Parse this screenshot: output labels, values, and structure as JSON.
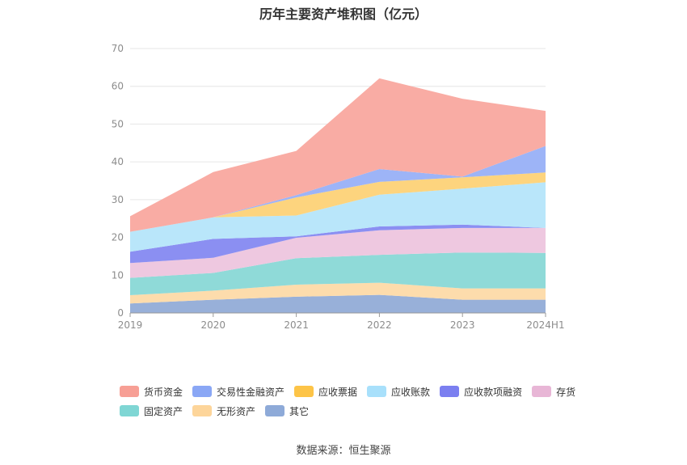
{
  "chart_title": "历年主要资产堆积图（亿元）",
  "source_note": "数据来源：恒生聚源",
  "chart_data": {
    "type": "area",
    "stacked": true,
    "title": "历年主要资产堆积图（亿元）",
    "categories": [
      "2019",
      "2020",
      "2021",
      "2022",
      "2023",
      "2024H1"
    ],
    "ylim": [
      0,
      70
    ],
    "yticks": [
      0,
      10,
      20,
      30,
      40,
      50,
      60,
      70
    ],
    "grid": true,
    "legend_position": "bottom",
    "series": [
      {
        "name": "其它",
        "color": "#98b0d9",
        "values": [
          2.5,
          3.5,
          4.3,
          4.8,
          3.5,
          3.5
        ]
      },
      {
        "name": "无形资产",
        "color": "#fddcac",
        "values": [
          2.2,
          2.4,
          3.2,
          3.2,
          3.0,
          3.0
        ]
      },
      {
        "name": "固定资产",
        "color": "#8fdad8",
        "values": [
          4.6,
          4.7,
          7.0,
          7.4,
          9.5,
          9.4
        ]
      },
      {
        "name": "存货",
        "color": "#eec8e0",
        "values": [
          3.9,
          4.0,
          5.4,
          6.5,
          6.5,
          6.6
        ]
      },
      {
        "name": "应收款项融资",
        "color": "#8b8ff2",
        "values": [
          3.0,
          5.0,
          0.4,
          1.0,
          0.9,
          0.0
        ]
      },
      {
        "name": "应收账款",
        "color": "#b9e6fa",
        "values": [
          5.3,
          5.7,
          5.5,
          8.4,
          9.5,
          12.1
        ]
      },
      {
        "name": "应收票据",
        "color": "#fdd47e",
        "values": [
          0.0,
          0.0,
          4.8,
          3.4,
          3.0,
          2.6
        ]
      },
      {
        "name": "交易性金融资产",
        "color": "#9db4f7",
        "values": [
          0.0,
          0.0,
          0.6,
          3.4,
          0.2,
          7.0
        ]
      },
      {
        "name": "货币资金",
        "color": "#f9aca4",
        "values": [
          4.1,
          12.0,
          11.7,
          24.0,
          20.6,
          9.3
        ]
      }
    ]
  },
  "legend": {
    "rows": [
      [
        {
          "label": "货币资金",
          "color": "#f79f95"
        },
        {
          "label": "交易性金融资产",
          "color": "#8aa7f5"
        },
        {
          "label": "应收票据",
          "color": "#fdc447"
        },
        {
          "label": "应收账款",
          "color": "#a8e0fb"
        },
        {
          "label": "应收款项融资",
          "color": "#7b7ff0"
        },
        {
          "label": "存货",
          "color": "#e8b6d6"
        }
      ],
      [
        {
          "label": "固定资产",
          "color": "#7fd6d4"
        },
        {
          "label": "无形资产",
          "color": "#fdd59a"
        },
        {
          "label": "其它",
          "color": "#8eaad8"
        }
      ]
    ]
  }
}
